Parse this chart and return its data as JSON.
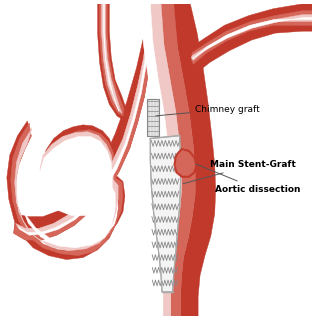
{
  "bg_color": "#ffffff",
  "c_dark": "#c0392b",
  "c_med": "#d4665a",
  "c_inner": "#e8908a",
  "c_pink": "#f0c8c5",
  "c_lumen": "#f8e8e7",
  "c_white": "#ffffff",
  "c_stent_bg": "#f4f4f4",
  "c_stent_line": "#aaaaaa",
  "c_stent_dark": "#888888",
  "c_chimney_bg": "#e8e8e8",
  "label_chimney": "Chimney graft",
  "label_stent": "Main Stent-Graft",
  "label_dissection": "Aortic dissection",
  "figsize": [
    3.2,
    3.2
  ],
  "dpi": 100
}
